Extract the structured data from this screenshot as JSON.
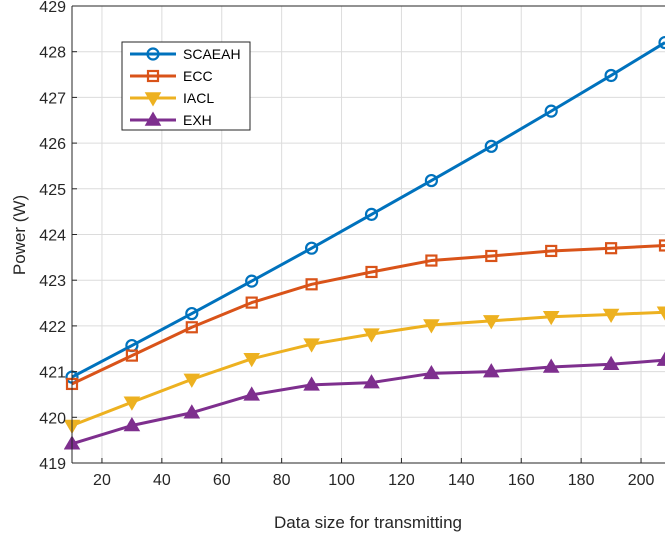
{
  "chart_data": {
    "type": "line",
    "xlabel": "Data size for transmitting",
    "ylabel": "Power (W)",
    "xlim": [
      10,
      208
    ],
    "ylim": [
      419,
      429
    ],
    "xticks": [
      20,
      40,
      60,
      80,
      100,
      120,
      140,
      160,
      180,
      200
    ],
    "yticks": [
      419,
      420,
      421,
      422,
      423,
      424,
      425,
      426,
      427,
      428,
      429
    ],
    "grid": true,
    "legend_position": "top-left",
    "x": [
      10,
      30,
      50,
      70,
      90,
      110,
      130,
      150,
      170,
      190,
      208
    ],
    "series": [
      {
        "name": "SCAEAH",
        "color": "#0072bd",
        "marker": "circle",
        "values": [
          420.88,
          421.57,
          422.27,
          422.98,
          423.7,
          424.44,
          425.18,
          425.93,
          426.7,
          427.48,
          428.2
        ]
      },
      {
        "name": "ECC",
        "color": "#d95319",
        "marker": "square",
        "values": [
          420.73,
          421.35,
          421.97,
          422.51,
          422.91,
          423.18,
          423.43,
          423.53,
          423.64,
          423.7,
          423.76
        ]
      },
      {
        "name": "IACL",
        "color": "#edb120",
        "marker": "triangle-down",
        "values": [
          419.82,
          420.33,
          420.83,
          421.28,
          421.6,
          421.82,
          422.02,
          422.11,
          422.2,
          422.25,
          422.3
        ]
      },
      {
        "name": "EXH",
        "color": "#7e2f8e",
        "marker": "triangle-up",
        "values": [
          419.42,
          419.82,
          420.1,
          420.49,
          420.71,
          420.76,
          420.96,
          421.0,
          421.1,
          421.16,
          421.25
        ]
      }
    ]
  }
}
